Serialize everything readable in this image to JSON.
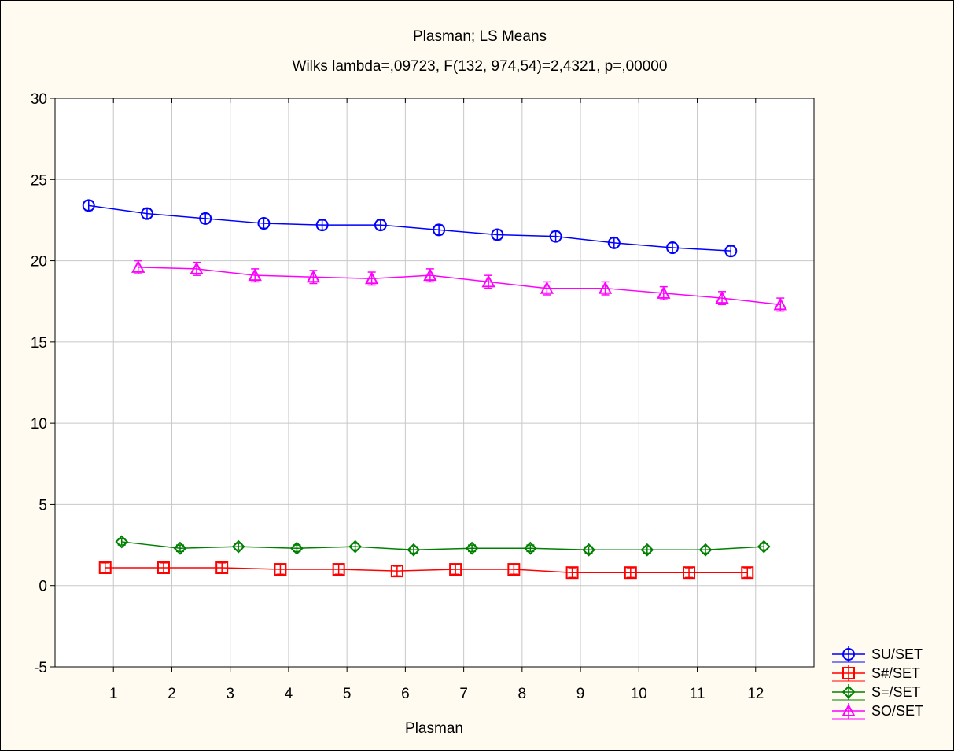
{
  "chart_data": {
    "type": "line",
    "title": "Plasman; LS Means",
    "subtitle": "Wilks lambda=,09723, F(132, 974,54)=2,4321, p=,00000",
    "xlabel": "Plasman",
    "ylabel": "",
    "categories": [
      "1",
      "2",
      "3",
      "4",
      "5",
      "6",
      "7",
      "8",
      "9",
      "10",
      "11",
      "12"
    ],
    "xlim": [
      0,
      13
    ],
    "ylim": [
      -5,
      30
    ],
    "yticks": [
      "-5",
      "0",
      "5",
      "10",
      "15",
      "20",
      "25",
      "30"
    ],
    "grid": true,
    "legend_position": "bottom-right",
    "error_bars": true,
    "series": [
      {
        "name": "SU/SET",
        "marker": "circle",
        "color": "#0000ff",
        "values": [
          23.4,
          22.9,
          22.6,
          22.3,
          22.2,
          22.2,
          21.9,
          21.6,
          21.5,
          21.1,
          20.8,
          20.6
        ],
        "errors": [
          0.3,
          0.3,
          0.3,
          0.3,
          0.3,
          0.3,
          0.3,
          0.3,
          0.3,
          0.3,
          0.3,
          0.3
        ]
      },
      {
        "name": "S#/SET",
        "marker": "square",
        "color": "#ff0000",
        "values": [
          1.1,
          1.1,
          1.1,
          1.0,
          1.0,
          0.9,
          1.0,
          1.0,
          0.8,
          0.8,
          0.8,
          0.8
        ],
        "errors": [
          0.3,
          0.3,
          0.3,
          0.3,
          0.3,
          0.3,
          0.3,
          0.3,
          0.3,
          0.3,
          0.3,
          0.3
        ]
      },
      {
        "name": "S=/SET",
        "marker": "diamond",
        "color": "#008000",
        "values": [
          2.7,
          2.3,
          2.4,
          2.3,
          2.4,
          2.2,
          2.3,
          2.3,
          2.2,
          2.2,
          2.2,
          2.4
        ],
        "errors": [
          0.2,
          0.2,
          0.2,
          0.2,
          0.2,
          0.2,
          0.2,
          0.2,
          0.2,
          0.2,
          0.2,
          0.2
        ]
      },
      {
        "name": "SO/SET",
        "marker": "triangle",
        "color": "#ff00ff",
        "values": [
          19.6,
          19.5,
          19.1,
          19.0,
          18.9,
          19.1,
          18.7,
          18.3,
          18.3,
          18.0,
          17.7,
          17.3
        ],
        "errors": [
          0.4,
          0.4,
          0.4,
          0.4,
          0.4,
          0.4,
          0.4,
          0.4,
          0.4,
          0.4,
          0.4,
          0.4
        ]
      }
    ]
  }
}
